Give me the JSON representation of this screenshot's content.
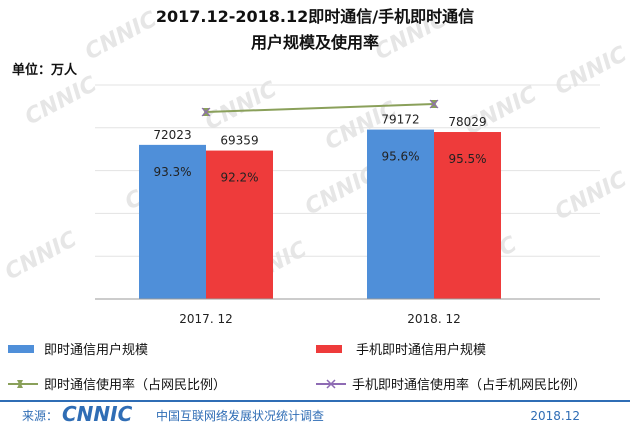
{
  "chart_data": {
    "type": "bar",
    "title_lines": [
      "2017.12-2018.12即时通信/手机即时通信",
      "用户规模及使用率"
    ],
    "unit_label": "单位：万人",
    "categories": [
      "2017. 12",
      "2018. 12"
    ],
    "series": [
      {
        "name": "即时通信用户规模",
        "type": "bar",
        "values": [
          72023,
          79172
        ],
        "color": "#4f8fd9"
      },
      {
        "name": "手机即时通信用户规模",
        "type": "bar",
        "values": [
          69359,
          78029
        ],
        "color": "#ee3b3b"
      },
      {
        "name": "即时通信使用率（占网民比例）",
        "type": "line",
        "values": [
          93.3,
          95.6
        ],
        "unit": "%",
        "color": "#8aa05a"
      },
      {
        "name": "手机即时通信使用率（占手机网民比例）",
        "type": "line",
        "values": [
          92.2,
          95.5
        ],
        "unit": "%",
        "color": "#8e6bb4"
      }
    ],
    "value_labels_bar": [
      [
        "72023",
        "69359"
      ],
      [
        "79172",
        "78029"
      ]
    ],
    "value_labels_rate": [
      [
        "93.3%",
        "92.2%"
      ],
      [
        "95.6%",
        "95.5%"
      ]
    ],
    "ylim": [
      0,
      100000
    ],
    "grid": true
  },
  "footer": {
    "source_label": "来源：",
    "brand": "CNNIC",
    "org": "中国互联网络发展状况统计调查",
    "date": "2018.12"
  },
  "watermark_text": "CNNIC"
}
